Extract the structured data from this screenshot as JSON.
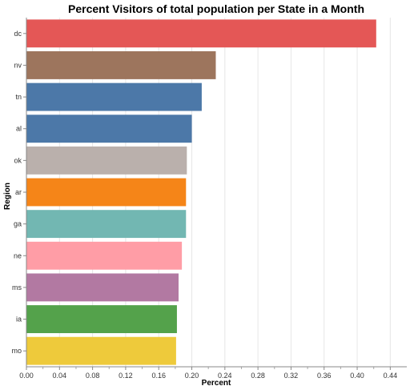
{
  "chart_data": {
    "type": "bar",
    "orientation": "horizontal",
    "title": "Percent Visitors of total population per State in a Month",
    "xlabel": "Percent",
    "ylabel": "Region",
    "xlim": [
      0,
      0.46
    ],
    "x_ticks": [
      "0.00",
      "0.04",
      "0.08",
      "0.12",
      "0.16",
      "0.20",
      "0.24",
      "0.28",
      "0.32",
      "0.36",
      "0.40",
      "0.44"
    ],
    "grid": true,
    "categories": [
      "dc",
      "nv",
      "tn",
      "al",
      "ok",
      "ar",
      "ga",
      "ne",
      "ms",
      "ia",
      "mo"
    ],
    "values": [
      0.423,
      0.229,
      0.212,
      0.2,
      0.194,
      0.193,
      0.193,
      0.188,
      0.184,
      0.182,
      0.181
    ],
    "colors": [
      "#e45756",
      "#9d755d",
      "#4c78a8",
      "#4c78a8",
      "#bab0ac",
      "#f58518",
      "#72b7b2",
      "#ff9da6",
      "#b279a2",
      "#54a24b",
      "#eeca3b"
    ]
  }
}
